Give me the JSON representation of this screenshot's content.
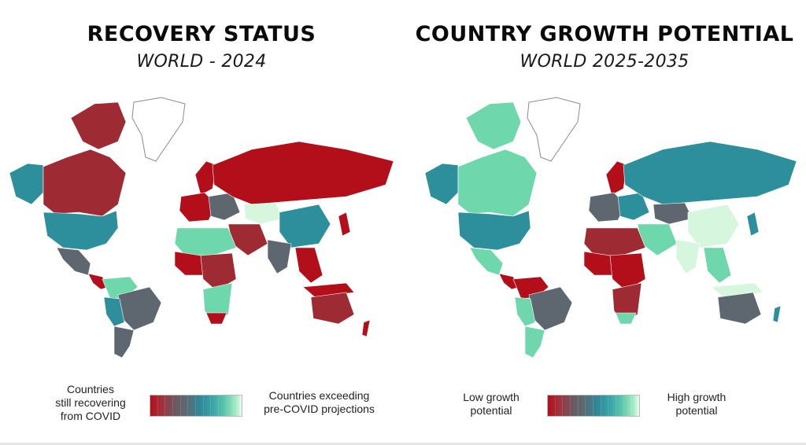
{
  "left": {
    "title": "RECOVERY STATUS",
    "subtitle": "WORLD - 2024",
    "legend_low": "Countries\nstill recovering\nfrom COVID",
    "legend_high": "Countries exceeding\npre-COVID projections"
  },
  "right": {
    "title": "COUNTRY GROWTH POTENTIAL",
    "subtitle": "WORLD 2025-2035",
    "legend_low": "Low growth\npotential",
    "legend_high": "High growth\npotential"
  },
  "colors": {
    "red": "#b30f1a",
    "dark_red": "#9e2a33",
    "grey": "#5e6770",
    "teal": "#2c8f9b",
    "mint": "#6fd7ac",
    "pale": "#d6f6de",
    "white": "#ffffff",
    "outline": "#9a9a9a"
  }
}
